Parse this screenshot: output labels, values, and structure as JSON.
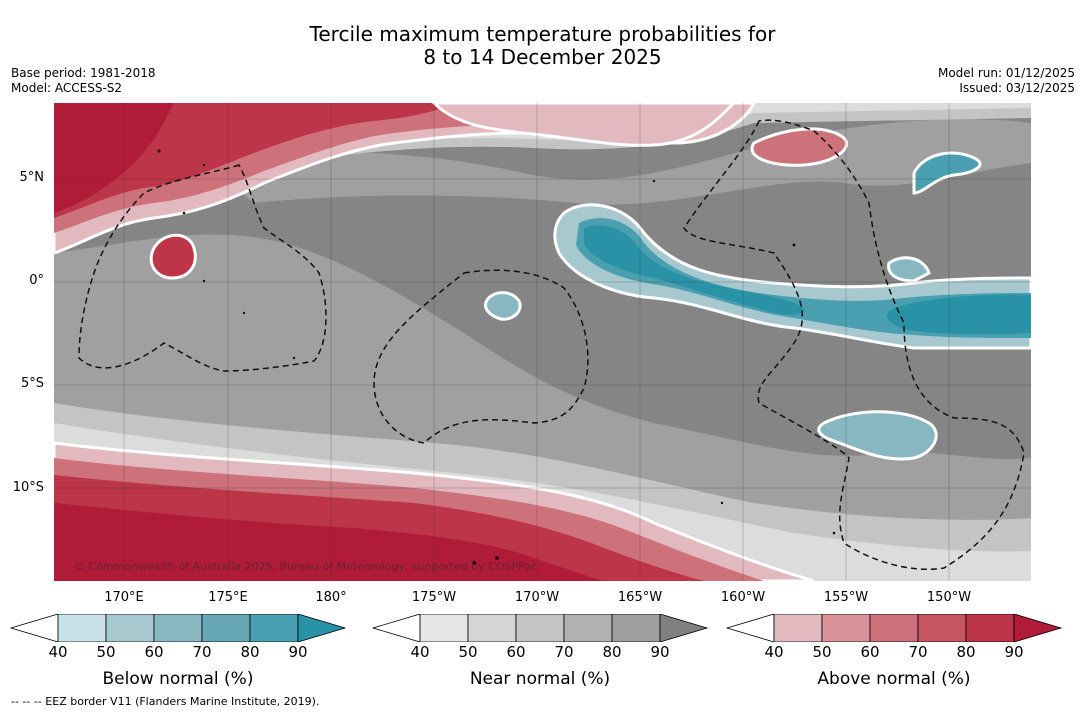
{
  "title_line1": "Tercile maximum temperature probabilities for",
  "title_line2": "8 to 14 December 2025",
  "base_period": "Base period: 1981-2018",
  "model": "Model: ACCESS-S2",
  "model_run": "Model run: 01/12/2025",
  "issued": "Issued: 03/12/2025",
  "lat_labels": [
    "5°N",
    "0°",
    "5°S",
    "10°S"
  ],
  "lon_labels": [
    "170°E",
    "175°E",
    "180°",
    "175°W",
    "170°W",
    "165°W",
    "160°W",
    "155°W",
    "150°W"
  ],
  "copyright": "© Commonwealth of Australia 2025, Bureau of Meteorology, supported by COSPPac",
  "colorbars": [
    {
      "name": "below",
      "title": "Below normal (%)",
      "ticks": [
        "40",
        "50",
        "60",
        "70",
        "80",
        "90"
      ],
      "colors": [
        "#c9e1e8",
        "#a7c8cf",
        "#88b6c1",
        "#68a8b6",
        "#4a9fb0",
        "#2a92a6"
      ]
    },
    {
      "name": "near",
      "title": "Near normal (%)",
      "ticks": [
        "40",
        "50",
        "60",
        "70",
        "80",
        "90"
      ],
      "colors": [
        "#e6e6e6",
        "#d6d6d6",
        "#c4c4c4",
        "#b2b2b2",
        "#9e9e9e",
        "#808080"
      ]
    },
    {
      "name": "above",
      "title": "Above normal (%)",
      "ticks": [
        "40",
        "50",
        "60",
        "70",
        "80",
        "90"
      ],
      "colors": [
        "#e2b9be",
        "#d99399",
        "#cd727b",
        "#c55561",
        "#bc3548",
        "#b01c38"
      ]
    }
  ],
  "footnote": "--  --  -- EEZ border V11 (Flanders Marine Institute, 2019)."
}
